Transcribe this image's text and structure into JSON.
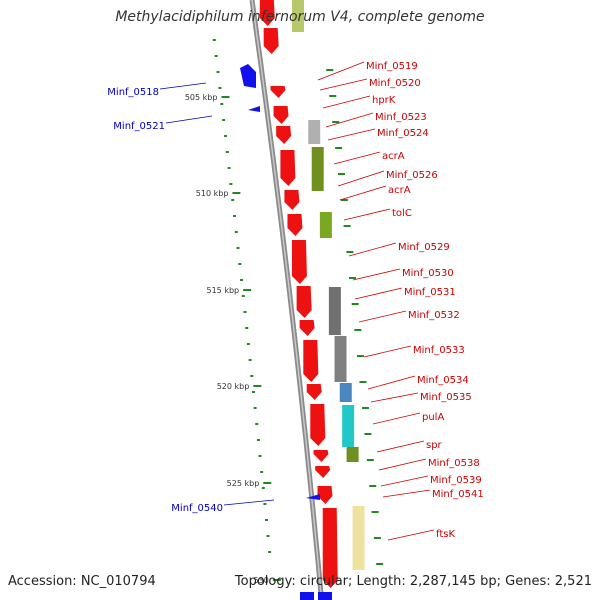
{
  "title": "Methylacidiphilum infernorum V4, complete genome",
  "accession": "Accession: NC_010794",
  "topology_line": "Topology: circular; Length: 2,287,145 bp; Genes: 2,521",
  "colors": {
    "backbone": "#8a8a8a",
    "forward_gene": "#ee1111",
    "reverse_gene": "#1111ee",
    "ticks": "#1f8a1f",
    "forward_label": "#cc0000",
    "reverse_label": "#0000bb"
  },
  "scale_labels": [
    "505 kbp",
    "510 kbp",
    "515 kbp",
    "520 kbp",
    "525 kbp",
    "530"
  ],
  "forward_labels": [
    "Minf_0519",
    "Minf_0520",
    "hprK",
    "Minf_0523",
    "Minf_0524",
    "acrA",
    "Minf_0526",
    "acrA",
    "tolC",
    "Minf_0529",
    "Minf_0530",
    "Minf_0531",
    "Minf_0532",
    "Minf_0533",
    "Minf_0534",
    "Minf_0535",
    "pulA",
    "spr",
    "Minf_0538",
    "Minf_0539",
    "Minf_0541",
    "ftsK"
  ],
  "reverse_labels": [
    "Minf_0518",
    "Minf_0521",
    "Minf_0540"
  ]
}
